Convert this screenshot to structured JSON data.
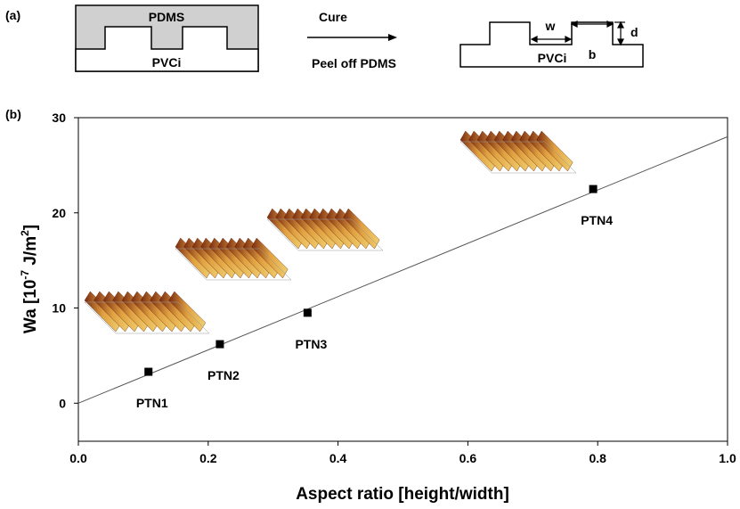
{
  "diagram": {
    "panel_label": "(a)",
    "mold_label": "PDMS",
    "film_label": "PVCi",
    "step_top": "Cure",
    "step_bottom": "Peel off PDMS",
    "width_label": "w",
    "spacing_label": "b",
    "depth_label": "d",
    "result_label": "PVCi"
  },
  "chart_data": {
    "type": "scatter",
    "panel_label": "(b)",
    "xlabel": "Aspect ratio [height/width]",
    "ylabel_parts": [
      "Wa [10",
      "-7",
      " J/m",
      "2",
      "]"
    ],
    "x": [
      0.108,
      0.218,
      0.353,
      0.793
    ],
    "values": [
      3.3,
      6.2,
      9.5,
      22.5
    ],
    "point_labels": [
      "PTN1",
      "PTN2",
      "PTN3",
      "PTN4"
    ],
    "color": "#000000",
    "fit": {
      "x": [
        0,
        1
      ],
      "values": [
        0,
        28
      ]
    },
    "xlim": [
      0,
      1
    ],
    "ylim": [
      -4,
      30
    ],
    "xticks": [
      {
        "value": 0,
        "label": "0.0"
      },
      {
        "value": 0.2,
        "label": "0.2"
      },
      {
        "value": 0.4,
        "label": "0.4"
      },
      {
        "value": 0.6,
        "label": "0.6"
      },
      {
        "value": 0.8,
        "label": "0.8"
      },
      {
        "value": 1,
        "label": "1.0"
      }
    ],
    "yticks": [
      0,
      10,
      20,
      30
    ]
  }
}
